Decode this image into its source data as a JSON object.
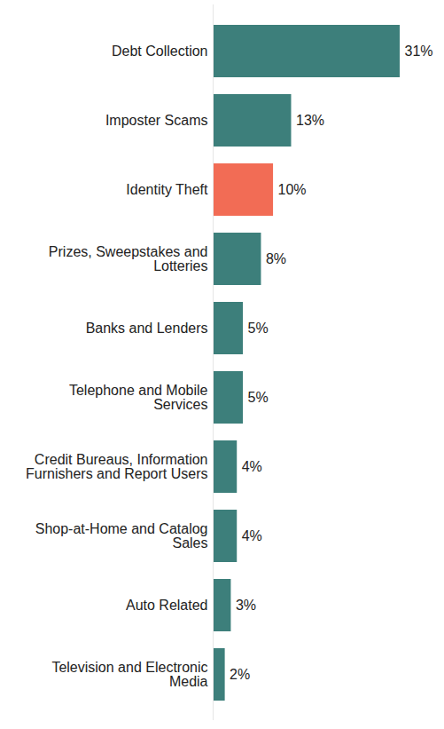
{
  "chart_data": {
    "type": "bar",
    "orientation": "horizontal",
    "categories": [
      "Debt Collection",
      "Imposter Scams",
      "Identity Theft",
      "Prizes, Sweepstakes and Lotteries",
      "Banks and Lenders",
      "Telephone and Mobile Services",
      "Credit Bureaus, Information Furnishers and Report Users",
      "Shop-at-Home and Catalog Sales",
      "Auto Related",
      "Television and Electronic Media"
    ],
    "values": [
      31,
      13,
      10,
      8,
      5,
      5,
      4,
      4,
      3,
      2
    ],
    "value_labels": [
      "31%",
      "13%",
      "10%",
      "8%",
      "5%",
      "5%",
      "4%",
      "4%",
      "3%",
      "2%"
    ],
    "colors": [
      "#3d7f7b",
      "#3d7f7b",
      "#f26c55",
      "#3d7f7b",
      "#3d7f7b",
      "#3d7f7b",
      "#3d7f7b",
      "#3d7f7b",
      "#3d7f7b",
      "#3d7f7b"
    ],
    "xlim": [
      0,
      31
    ],
    "xticks": [],
    "data_labels": true,
    "tick_labels": "y",
    "grid": false
  }
}
